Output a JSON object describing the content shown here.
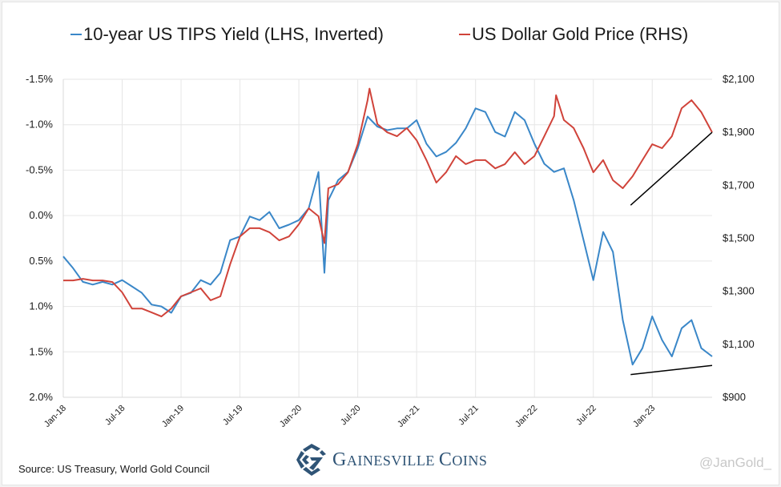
{
  "chart_data": {
    "type": "line",
    "title": "",
    "legend_placement": "top",
    "legend": [
      {
        "name": "10-year US TIPS Yield (LHS, Inverted)",
        "color": "#3a87c8"
      },
      {
        "name": "US Dollar Gold Price (RHS)",
        "color": "#d0433a"
      }
    ],
    "x_unit": "months since Jan-2018",
    "xlim": [
      0,
      66.1
    ],
    "x_ticks": [
      {
        "m": 0,
        "label": "Jan-18"
      },
      {
        "m": 6,
        "label": "Jul-18"
      },
      {
        "m": 12,
        "label": "Jan-19"
      },
      {
        "m": 18,
        "label": "Jul-19"
      },
      {
        "m": 24,
        "label": "Jan-20"
      },
      {
        "m": 30,
        "label": "Jul-20"
      },
      {
        "m": 36,
        "label": "Jan-21"
      },
      {
        "m": 42,
        "label": "Jul-21"
      },
      {
        "m": 48,
        "label": "Jan-22"
      },
      {
        "m": 54,
        "label": "Jul-22"
      },
      {
        "m": 60,
        "label": "Jan-23"
      }
    ],
    "y_left": {
      "label": "10-year US TIPS Yield",
      "inverted": true,
      "ylim": [
        -1.5,
        2.0
      ],
      "ticks": [
        {
          "v": -1.5,
          "label": "-1.5%"
        },
        {
          "v": -1.0,
          "label": "-1.0%"
        },
        {
          "v": -0.5,
          "label": "-0.5%"
        },
        {
          "v": 0.0,
          "label": "0.0%"
        },
        {
          "v": 0.5,
          "label": "0.5%"
        },
        {
          "v": 1.0,
          "label": "1.0%"
        },
        {
          "v": 1.5,
          "label": "1.5%"
        },
        {
          "v": 2.0,
          "label": "2.0%"
        }
      ]
    },
    "y_right": {
      "label": "US Dollar Gold Price",
      "ylim": [
        900,
        2100
      ],
      "ticks": [
        {
          "v": 2100,
          "label": "$2,100"
        },
        {
          "v": 1900,
          "label": "$1,900"
        },
        {
          "v": 1700,
          "label": "$1,700"
        },
        {
          "v": 1500,
          "label": "$1,500"
        },
        {
          "v": 1300,
          "label": "$1,300"
        },
        {
          "v": 1100,
          "label": "$1,100"
        },
        {
          "v": 900,
          "label": "$900"
        }
      ]
    },
    "grid": true,
    "series": [
      {
        "name": "10-year US TIPS Yield (LHS, Inverted)",
        "axis": "left",
        "color": "#3a87c8",
        "x": [
          0,
          1,
          2,
          3,
          4,
          5,
          6,
          7,
          8,
          9,
          10,
          11,
          12,
          13,
          14,
          15,
          16,
          17,
          18,
          19,
          20,
          21,
          22,
          23,
          24,
          25,
          26,
          26.6,
          27,
          28,
          29,
          30,
          31,
          32,
          33,
          34,
          35,
          36,
          37,
          38,
          39,
          40,
          41,
          42,
          43,
          44,
          45,
          46,
          47,
          48,
          49,
          50,
          51,
          52,
          53,
          54,
          55,
          56,
          57,
          58,
          59,
          60,
          61,
          62,
          63,
          64,
          65,
          66.1
        ],
        "values": [
          0.45,
          0.58,
          0.73,
          0.76,
          0.73,
          0.76,
          0.71,
          0.78,
          0.85,
          0.98,
          1.0,
          1.07,
          0.89,
          0.85,
          0.71,
          0.76,
          0.63,
          0.27,
          0.23,
          0.01,
          0.05,
          -0.04,
          0.14,
          0.1,
          0.05,
          -0.08,
          -0.48,
          0.63,
          -0.17,
          -0.39,
          -0.48,
          -0.74,
          -1.09,
          -0.98,
          -0.94,
          -0.96,
          -0.96,
          -1.05,
          -0.79,
          -0.65,
          -0.7,
          -0.8,
          -0.96,
          -1.18,
          -1.14,
          -0.92,
          -0.87,
          -1.14,
          -1.05,
          -0.79,
          -0.57,
          -0.48,
          -0.52,
          -0.17,
          0.27,
          0.71,
          0.18,
          0.4,
          1.15,
          1.64,
          1.46,
          1.11,
          1.37,
          1.55,
          1.24,
          1.15,
          1.46,
          1.55
        ]
      },
      {
        "name": "US Dollar Gold Price (RHS)",
        "axis": "right",
        "color": "#d0433a",
        "x": [
          0,
          1,
          2,
          3,
          4,
          5,
          6,
          7,
          8,
          9,
          10,
          11,
          12,
          13,
          14,
          15,
          16,
          17,
          18,
          19,
          20,
          21,
          22,
          23,
          24,
          25,
          26,
          26.6,
          27,
          28,
          29,
          30,
          31,
          31.2,
          32,
          33,
          34,
          35,
          36,
          37,
          38,
          39,
          40,
          41,
          42,
          43,
          44,
          45,
          46,
          47,
          48,
          49,
          50,
          50.2,
          51,
          52,
          53,
          54,
          55,
          56,
          57,
          58,
          59,
          60,
          61,
          62,
          63,
          64,
          65,
          66.1
        ],
        "values": [
          1341,
          1341,
          1347,
          1341,
          1341,
          1335,
          1296,
          1235,
          1235,
          1220,
          1205,
          1235,
          1281,
          1296,
          1311,
          1266,
          1281,
          1402,
          1507,
          1538,
          1538,
          1523,
          1492,
          1507,
          1553,
          1613,
          1583,
          1482,
          1689,
          1704,
          1749,
          1855,
          2021,
          2065,
          1931,
          1900,
          1885,
          1916,
          1870,
          1795,
          1710,
          1749,
          1810,
          1780,
          1795,
          1795,
          1764,
          1780,
          1825,
          1780,
          1810,
          1885,
          1961,
          2040,
          1946,
          1916,
          1840,
          1749,
          1795,
          1719,
          1689,
          1734,
          1795,
          1855,
          1840,
          1885,
          1991,
          2021,
          1976,
          1900
        ]
      }
    ],
    "annotations": [
      {
        "type": "trendline",
        "axis": "right",
        "from": {
          "m": 57.8,
          "v": 1625
        },
        "to": {
          "m": 66.1,
          "v": 1900
        },
        "color": "#000000"
      },
      {
        "type": "trendline",
        "axis": "left",
        "from": {
          "m": 57.8,
          "v": 1.75
        },
        "to": {
          "m": 66.1,
          "v": 1.65
        },
        "color": "#000000"
      }
    ]
  },
  "footer": {
    "source": "Source: US Treasury, World Gold Council",
    "brand_first_big": "G",
    "brand_first_rest": "AINESVILLE ",
    "brand_second_big": "C",
    "brand_second_rest": "OINS",
    "handle": "@JanGold_"
  }
}
